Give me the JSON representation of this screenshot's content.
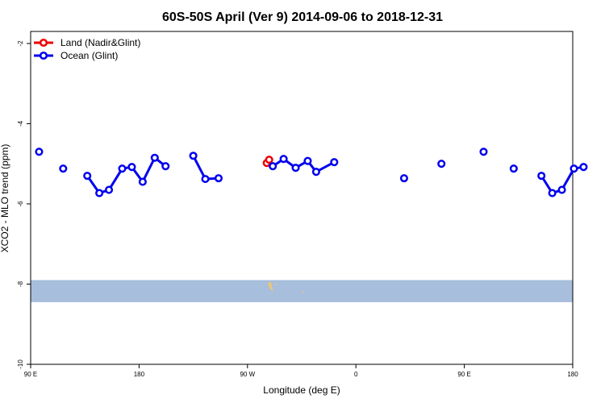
{
  "chart_data": {
    "type": "line",
    "title": "60S-50S April (Ver 9)   2014-09-06 to 2018-12-31",
    "xlabel": "Longitude (deg E)",
    "ylabel": "XCO2 - MLO trend (ppm)",
    "xlim": [
      90,
      540
    ],
    "ylim": [
      -10,
      -1.7
    ],
    "x_ticks": [
      {
        "value": 90,
        "label": "90 E"
      },
      {
        "value": 180,
        "label": "180"
      },
      {
        "value": 270,
        "label": "90 W"
      },
      {
        "value": 360,
        "label": "0"
      },
      {
        "value": 450,
        "label": "90 E"
      },
      {
        "value": 540,
        "label": "180"
      }
    ],
    "y_ticks": [
      {
        "value": -2,
        "label": "-2"
      },
      {
        "value": -4,
        "label": "-4"
      },
      {
        "value": -6,
        "label": "-6"
      },
      {
        "value": -8,
        "label": "-8"
      },
      {
        "value": -10,
        "label": "-10"
      }
    ],
    "legend_position": "top-left",
    "grid": false,
    "map_band": {
      "lat_range_label": "60S-50S",
      "color": "#a7bedc",
      "land_color": "#f2c96b",
      "y_range": [
        -8.45,
        -7.9
      ]
    },
    "series": [
      {
        "name": "Land (Nadir&Glint)",
        "color": "#ee0000",
        "segments": [
          [
            [
              286,
              -4.98
            ],
            [
              288,
              -4.9
            ]
          ]
        ]
      },
      {
        "name": "Ocean (Glint)",
        "color": "#0000ee",
        "segments": [
          [
            [
              97,
              -4.7
            ]
          ],
          [
            [
              117,
              -5.12
            ]
          ],
          [
            [
              137,
              -5.3
            ],
            [
              147,
              -5.73
            ],
            [
              155,
              -5.65
            ],
            [
              166,
              -5.12
            ],
            [
              174,
              -5.08
            ],
            [
              183,
              -5.45
            ],
            [
              193,
              -4.85
            ],
            [
              202,
              -5.06
            ]
          ],
          [
            [
              225,
              -4.8
            ],
            [
              235,
              -5.38
            ],
            [
              246,
              -5.36
            ]
          ],
          [
            [
              291,
              -5.06
            ],
            [
              300,
              -4.88
            ],
            [
              310,
              -5.1
            ],
            [
              320,
              -4.93
            ],
            [
              327,
              -5.2
            ],
            [
              342,
              -4.96
            ]
          ],
          [
            [
              400,
              -5.36
            ]
          ],
          [
            [
              431,
              -5.0
            ]
          ],
          [
            [
              466,
              -4.7
            ]
          ],
          [
            [
              491,
              -5.12
            ]
          ],
          [
            [
              514,
              -5.3
            ],
            [
              523,
              -5.73
            ],
            [
              531,
              -5.65
            ],
            [
              541,
              -5.12
            ],
            [
              549,
              -5.08
            ]
          ]
        ]
      }
    ]
  }
}
